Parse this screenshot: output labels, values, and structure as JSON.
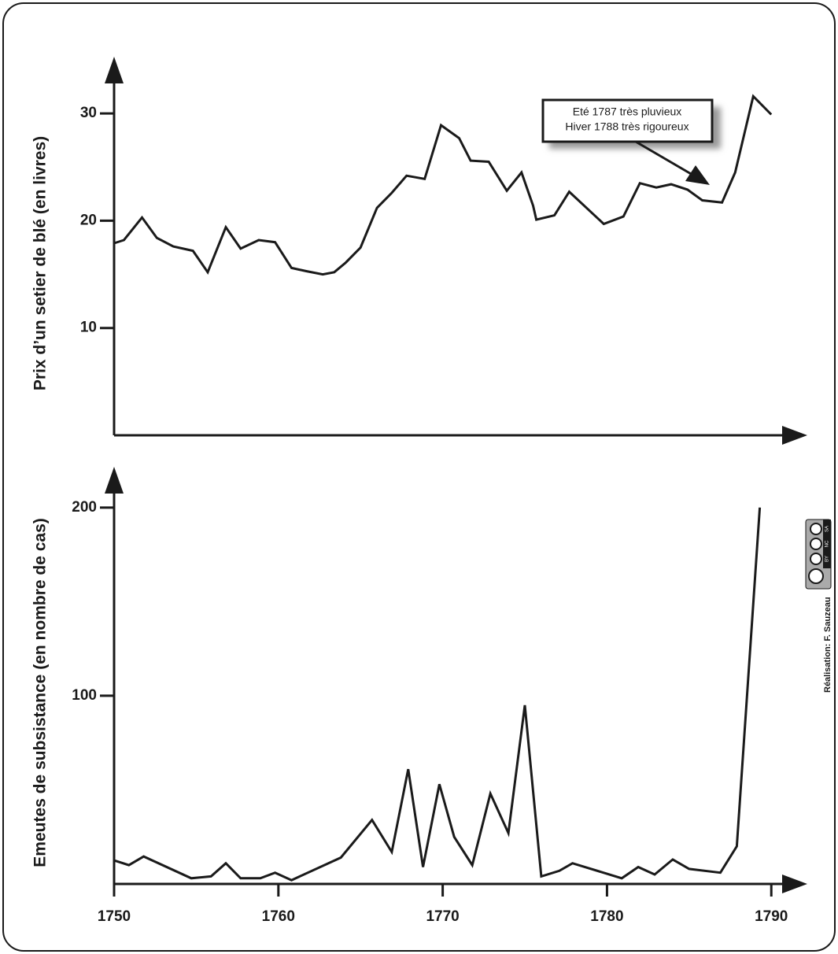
{
  "chart_data": [
    {
      "type": "line",
      "ylabel": "Prix d’un setier de blé (en livres)",
      "x": [
        1750,
        1750.6,
        1751.7,
        1752.6,
        1753.6,
        1754.8,
        1755.7,
        1756.8,
        1757.7,
        1758.8,
        1759.8,
        1760.8,
        1761.7,
        1762.7,
        1763.4,
        1764.1,
        1765,
        1766,
        1766.9,
        1767.8,
        1768.9,
        1769.9,
        1771,
        1771.7,
        1772.8,
        1773.9,
        1774.8,
        1775.5,
        1775.7,
        1776.8,
        1777.7,
        1779.8,
        1781,
        1782,
        1783,
        1783.9,
        1784.9,
        1785.8,
        1787,
        1787.8,
        1788.9,
        1790
      ],
      "values": [
        17.9,
        18.2,
        20.3,
        18.4,
        17.6,
        17.2,
        15.2,
        19.4,
        17.4,
        18.2,
        18.0,
        15.6,
        15.3,
        15.0,
        15.2,
        16.1,
        17.5,
        21.2,
        22.6,
        24.2,
        23.9,
        28.9,
        27.7,
        25.6,
        25.5,
        22.8,
        24.5,
        21.4,
        20.1,
        20.5,
        22.7,
        19.7,
        20.4,
        23.5,
        23.1,
        23.4,
        22.9,
        21.9,
        21.7,
        24.5,
        31.6,
        29.9
      ],
      "color": "#1a1a1a",
      "xlim": [
        1750,
        1792
      ],
      "ylim": [
        0,
        35
      ],
      "yticks": [
        10,
        20,
        30
      ],
      "annotation": [
        "Eté 1787 très pluvieux",
        "Hiver 1788 très rigoureux"
      ]
    },
    {
      "type": "line",
      "ylabel": "Emeutes de subsistance (en nombre de cas)",
      "x": [
        1750,
        1750.9,
        1751.8,
        1754.7,
        1755.9,
        1756.8,
        1757.7,
        1758.9,
        1759.8,
        1760.8,
        1763.8,
        1765.7,
        1766.9,
        1767.9,
        1768.8,
        1769.8,
        1770.7,
        1771.8,
        1772.9,
        1774,
        1775,
        1776,
        1777.1,
        1777.9,
        1780.9,
        1781.9,
        1782.9,
        1784,
        1785,
        1786.9,
        1787.9,
        1789.3
      ],
      "values": [
        12.5,
        10,
        14.6,
        3,
        4,
        11,
        3,
        3,
        6,
        2,
        14,
        34,
        17,
        61,
        9,
        53,
        25,
        10,
        48,
        27,
        95,
        4,
        7,
        11,
        3,
        9,
        5,
        13,
        8,
        6,
        20,
        200
      ],
      "color": "#1a1a1a",
      "xlim": [
        1750,
        1792
      ],
      "ylim": [
        0,
        220
      ],
      "yticks": [
        100,
        200
      ],
      "xticks": [
        1750,
        1760,
        1770,
        1780,
        1790
      ]
    }
  ],
  "credit": "Réalisation: F. Sauzeau",
  "license": [
    "BY",
    "NC",
    "SA"
  ]
}
